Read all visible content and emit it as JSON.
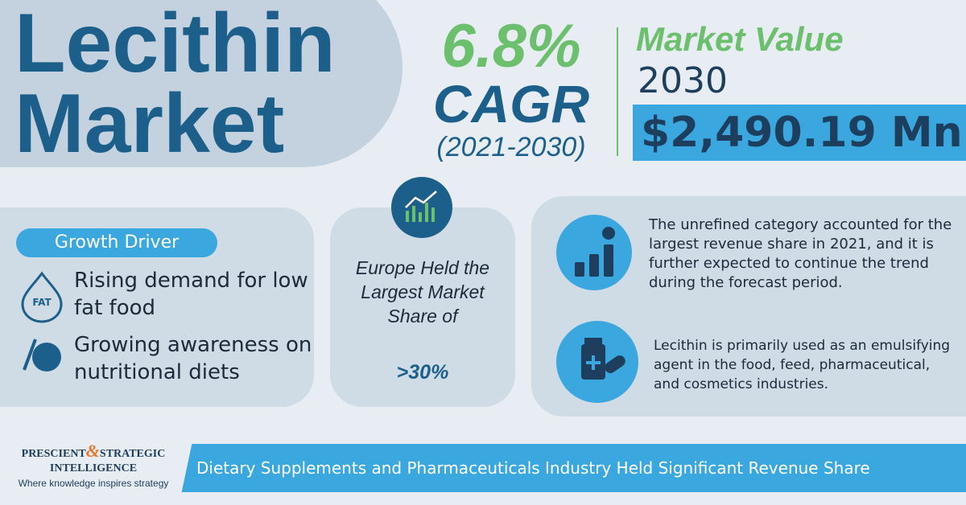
{
  "title_lines": [
    "Lecithin",
    "Market"
  ],
  "cagr": {
    "value": "6.8%",
    "label": "CAGR",
    "period": "(2021-2030)"
  },
  "market_value": {
    "label": "Market Value",
    "year": "2030",
    "amount": "$2,490.19 Mn"
  },
  "growth_driver": {
    "title": "Growth Driver",
    "fat_icon_label": "FAT",
    "items": [
      "Rising demand for low fat food",
      "Growing awareness on nutritional diets"
    ]
  },
  "europe": {
    "text": "Europe Held the Largest Market Share of",
    "highlight": ">30%"
  },
  "insights": [
    "The unrefined category accounted for the largest revenue share in 2021, and it is further expected to continue the trend during the forecast period.",
    "Lecithin is primarily used as an emulsifying agent in the food, feed, pharmaceutical, and cosmetics industries."
  ],
  "logo": {
    "left": "PRESCIENT",
    "amp": "&",
    "right": "STRATEGIC",
    "bottom": "INTELLIGENCE",
    "tagline": "Where knowledge inspires strategy"
  },
  "footer": "Dietary Supplements and Pharmaceuticals Industry Held Significant Revenue Share"
}
